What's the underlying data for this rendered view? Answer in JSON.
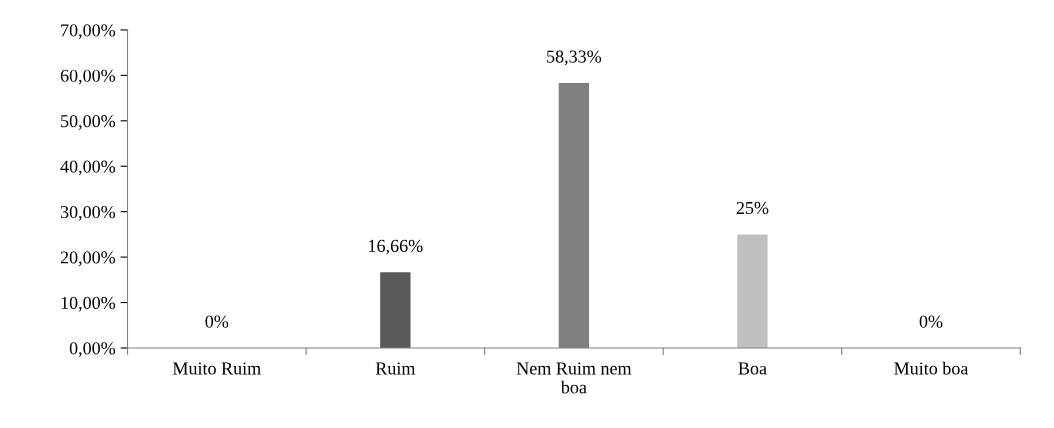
{
  "chart_data": {
    "type": "bar",
    "categories": [
      "Muito Ruim",
      "Ruim",
      "Nem Ruim nem\nboa",
      "Boa",
      "Muito boa"
    ],
    "values": [
      0,
      16.66,
      58.33,
      25,
      0
    ],
    "colors": [
      null,
      "#595959",
      "#7f7f7f",
      "#bfbfbf",
      null
    ],
    "value_labels": [
      "0%",
      "16,66%",
      "58,33%",
      "25%",
      "0%"
    ],
    "ylim": [
      0,
      70
    ],
    "yticks": [
      {
        "value": 0,
        "label": "0,00%"
      },
      {
        "value": 10,
        "label": "10,00%"
      },
      {
        "value": 20,
        "label": "20,00%"
      },
      {
        "value": 30,
        "label": "30,00%"
      },
      {
        "value": 40,
        "label": "40,00%"
      },
      {
        "value": 50,
        "label": "50,00%"
      },
      {
        "value": 60,
        "label": "60,00%"
      },
      {
        "value": 70,
        "label": "70,00%"
      }
    ],
    "grid": false,
    "legend": false
  }
}
